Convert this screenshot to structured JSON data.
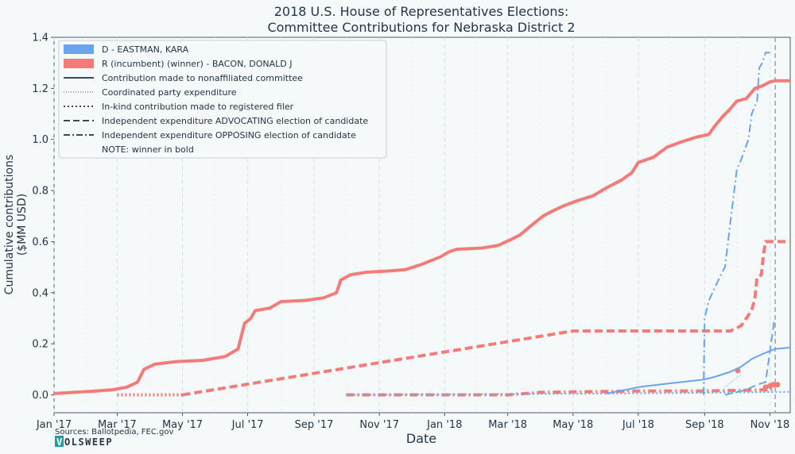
{
  "chart_data": {
    "type": "line",
    "title": [
      "2018 U.S. House of Representatives Elections:",
      "Committee Contributions for Nebraska District 2"
    ],
    "xlabel": "Date",
    "ylabel": [
      "Cumulative contributions",
      "($MM USD)"
    ],
    "ylim": [
      -0.07,
      1.4
    ],
    "xlim": [
      "2017-01-01",
      "2018-11-20"
    ],
    "y_ticks": [
      0,
      0.2,
      0.4,
      0.6,
      0.8,
      1.0,
      1.2,
      1.4
    ],
    "y_tick_labels": [
      "0.0",
      "0.2",
      "0.4",
      "0.6",
      "0.8",
      "1.0",
      "1.2",
      "1.4"
    ],
    "x_ticks": [
      "2017-01-01",
      "2017-03-01",
      "2017-05-01",
      "2017-07-01",
      "2017-09-01",
      "2017-11-01",
      "2018-01-01",
      "2018-03-01",
      "2018-05-01",
      "2018-07-01",
      "2018-09-01",
      "2018-11-01"
    ],
    "x_tick_labels": [
      "Jan '17",
      "Mar '17",
      "May '17",
      "Jul '17",
      "Sep '17",
      "Nov '17",
      "Jan '18",
      "Mar '18",
      "May '18",
      "Jul '18",
      "Sep '18",
      "Nov '18"
    ],
    "grid": "vertical dashed",
    "election_day": "2018-11-06",
    "legend_position": "top-left",
    "legend": [
      {
        "label": "D - EASTMAN, KARA",
        "kind": "patch",
        "color": "#6aa4ee"
      },
      {
        "label": "R (incumbent) (winner) - BACON, DONALD J",
        "kind": "patch",
        "color": "#f47c78"
      },
      {
        "label": "Contribution made to nonaffiliated committee",
        "kind": "line",
        "dash": "solid"
      },
      {
        "label": "Coordinated party expenditure",
        "kind": "line",
        "dash": "thin-dotted"
      },
      {
        "label": "In-kind contribution made to registered filer",
        "kind": "line",
        "dash": "dotted"
      },
      {
        "label": "Independent expenditure ADVOCATING election of candidate",
        "kind": "line",
        "dash": "dashed"
      },
      {
        "label": "Independent expenditure OPPOSING election of candidate",
        "kind": "line",
        "dash": "dashdot"
      },
      {
        "label": "NOTE: winner in bold",
        "kind": "none"
      }
    ],
    "colors": {
      "D": "#6aa4ee",
      "R": "#f47c78"
    },
    "series": [
      {
        "candidate": "R",
        "type": "Contribution made to nonaffiliated committee",
        "style": "solid",
        "bold": true,
        "points": [
          [
            "2017-01-01",
            0.005
          ],
          [
            "2017-01-20",
            0.01
          ],
          [
            "2017-02-10",
            0.015
          ],
          [
            "2017-02-25",
            0.02
          ],
          [
            "2017-03-10",
            0.03
          ],
          [
            "2017-03-20",
            0.05
          ],
          [
            "2017-03-26",
            0.1
          ],
          [
            "2017-04-05",
            0.12
          ],
          [
            "2017-04-25",
            0.13
          ],
          [
            "2017-05-20",
            0.135
          ],
          [
            "2017-06-10",
            0.15
          ],
          [
            "2017-06-22",
            0.18
          ],
          [
            "2017-06-28",
            0.28
          ],
          [
            "2017-07-04",
            0.3
          ],
          [
            "2017-07-08",
            0.33
          ],
          [
            "2017-07-22",
            0.34
          ],
          [
            "2017-08-01",
            0.365
          ],
          [
            "2017-08-25",
            0.37
          ],
          [
            "2017-09-10",
            0.38
          ],
          [
            "2017-09-22",
            0.4
          ],
          [
            "2017-09-26",
            0.45
          ],
          [
            "2017-10-05",
            0.47
          ],
          [
            "2017-10-20",
            0.48
          ],
          [
            "2017-11-10",
            0.485
          ],
          [
            "2017-11-25",
            0.49
          ],
          [
            "2017-12-10",
            0.51
          ],
          [
            "2017-12-28",
            0.54
          ],
          [
            "2018-01-05",
            0.56
          ],
          [
            "2018-01-12",
            0.57
          ],
          [
            "2018-02-05",
            0.575
          ],
          [
            "2018-02-20",
            0.585
          ],
          [
            "2018-03-05",
            0.61
          ],
          [
            "2018-03-12",
            0.625
          ],
          [
            "2018-03-25",
            0.67
          ],
          [
            "2018-04-03",
            0.7
          ],
          [
            "2018-04-12",
            0.72
          ],
          [
            "2018-04-22",
            0.74
          ],
          [
            "2018-05-05",
            0.76
          ],
          [
            "2018-05-20",
            0.78
          ],
          [
            "2018-06-01",
            0.81
          ],
          [
            "2018-06-15",
            0.84
          ],
          [
            "2018-06-25",
            0.87
          ],
          [
            "2018-07-01",
            0.91
          ],
          [
            "2018-07-15",
            0.93
          ],
          [
            "2018-07-28",
            0.97
          ],
          [
            "2018-08-10",
            0.99
          ],
          [
            "2018-08-25",
            1.01
          ],
          [
            "2018-09-05",
            1.02
          ],
          [
            "2018-09-10",
            1.05
          ],
          [
            "2018-09-18",
            1.09
          ],
          [
            "2018-09-25",
            1.12
          ],
          [
            "2018-10-01",
            1.15
          ],
          [
            "2018-10-10",
            1.16
          ],
          [
            "2018-10-18",
            1.2
          ],
          [
            "2018-10-25",
            1.21
          ],
          [
            "2018-11-01",
            1.225
          ],
          [
            "2018-11-06",
            1.23
          ],
          [
            "2018-11-20",
            1.23
          ]
        ]
      },
      {
        "candidate": "R",
        "type": "In-kind contribution made to registered filer",
        "style": "dotted",
        "bold": true,
        "points": [
          [
            "2017-03-01",
            0.0
          ],
          [
            "2017-05-01",
            0.0
          ]
        ]
      },
      {
        "candidate": "R",
        "type": "Independent expenditure ADVOCATING election of candidate",
        "style": "dashed",
        "bold": true,
        "points": [
          [
            "2017-05-01",
            0.0
          ],
          [
            "2018-05-01",
            0.25
          ],
          [
            "2018-09-25",
            0.25
          ],
          [
            "2018-10-05",
            0.27
          ],
          [
            "2018-10-15",
            0.33
          ],
          [
            "2018-10-18",
            0.38
          ],
          [
            "2018-10-20",
            0.46
          ],
          [
            "2018-10-24",
            0.47
          ],
          [
            "2018-10-26",
            0.55
          ],
          [
            "2018-10-28",
            0.6
          ],
          [
            "2018-11-20",
            0.6
          ]
        ]
      },
      {
        "candidate": "R",
        "type": "Independent expenditure OPPOSING election of candidate",
        "style": "dashdot",
        "bold": true,
        "points": [
          [
            "2017-10-01",
            0.0
          ],
          [
            "2018-03-01",
            0.0
          ],
          [
            "2018-04-01",
            0.01
          ],
          [
            "2018-07-01",
            0.015
          ],
          [
            "2018-09-01",
            0.015
          ],
          [
            "2018-11-01",
            0.02
          ],
          [
            "2018-11-06",
            0.025
          ]
        ]
      },
      {
        "candidate": "R",
        "type": "Coordinated party expenditure",
        "style": "markers",
        "bold": true,
        "points": [
          [
            "2018-10-02",
            0.095
          ],
          [
            "2018-10-28",
            0.03
          ],
          [
            "2018-11-01",
            0.035
          ],
          [
            "2018-11-04",
            0.04
          ],
          [
            "2018-11-08",
            0.04
          ]
        ]
      },
      {
        "candidate": "D",
        "type": "Contribution made to nonaffiliated committee",
        "style": "solid",
        "bold": false,
        "points": [
          [
            "2018-06-01",
            0.005
          ],
          [
            "2018-06-20",
            0.02
          ],
          [
            "2018-07-01",
            0.03
          ],
          [
            "2018-07-20",
            0.04
          ],
          [
            "2018-08-10",
            0.05
          ],
          [
            "2018-08-31",
            0.06
          ],
          [
            "2018-09-10",
            0.07
          ],
          [
            "2018-09-25",
            0.09
          ],
          [
            "2018-10-05",
            0.11
          ],
          [
            "2018-10-15",
            0.14
          ],
          [
            "2018-10-25",
            0.16
          ],
          [
            "2018-11-06",
            0.18
          ],
          [
            "2018-11-20",
            0.185
          ]
        ]
      },
      {
        "candidate": "D",
        "type": "Coordinated party expenditure",
        "style": "thin-dotted",
        "bold": false,
        "points": [
          [
            "2018-09-20",
            0.03
          ],
          [
            "2018-10-05",
            0.08
          ]
        ]
      },
      {
        "candidate": "D",
        "type": "In-kind contribution made to registered filer",
        "style": "dotted",
        "bold": false,
        "points": [
          [
            "2017-10-01",
            0.0
          ],
          [
            "2018-06-01",
            0.005
          ],
          [
            "2018-09-01",
            0.008
          ],
          [
            "2018-11-20",
            0.012
          ]
        ]
      },
      {
        "candidate": "D",
        "type": "Independent expenditure ADVOCATING election of candidate",
        "style": "dashed",
        "bold": false,
        "points": [
          [
            "2018-09-20",
            0.0
          ],
          [
            "2018-10-10",
            0.02
          ],
          [
            "2018-10-20",
            0.04
          ],
          [
            "2018-10-28",
            0.05
          ],
          [
            "2018-11-02",
            0.2
          ],
          [
            "2018-11-05",
            0.29
          ]
        ]
      },
      {
        "candidate": "D",
        "type": "Independent expenditure OPPOSING election of candidate",
        "style": "dashdot",
        "bold": false,
        "points": [
          [
            "2018-08-31",
            0.0
          ],
          [
            "2018-09-01",
            0.3
          ],
          [
            "2018-09-05",
            0.37
          ],
          [
            "2018-09-15",
            0.46
          ],
          [
            "2018-09-20",
            0.5
          ],
          [
            "2018-10-01",
            0.88
          ],
          [
            "2018-10-05",
            0.92
          ],
          [
            "2018-10-12",
            1.0
          ],
          [
            "2018-10-15",
            1.1
          ],
          [
            "2018-10-20",
            1.15
          ],
          [
            "2018-10-22",
            1.28
          ],
          [
            "2018-10-25",
            1.3
          ],
          [
            "2018-10-28",
            1.34
          ],
          [
            "2018-11-01",
            1.34
          ]
        ]
      }
    ]
  },
  "footer": {
    "sources": "Sources: Ballotpedia, FEC.gov",
    "brand_box": "V",
    "brand_rest": "OLSWEEP"
  }
}
